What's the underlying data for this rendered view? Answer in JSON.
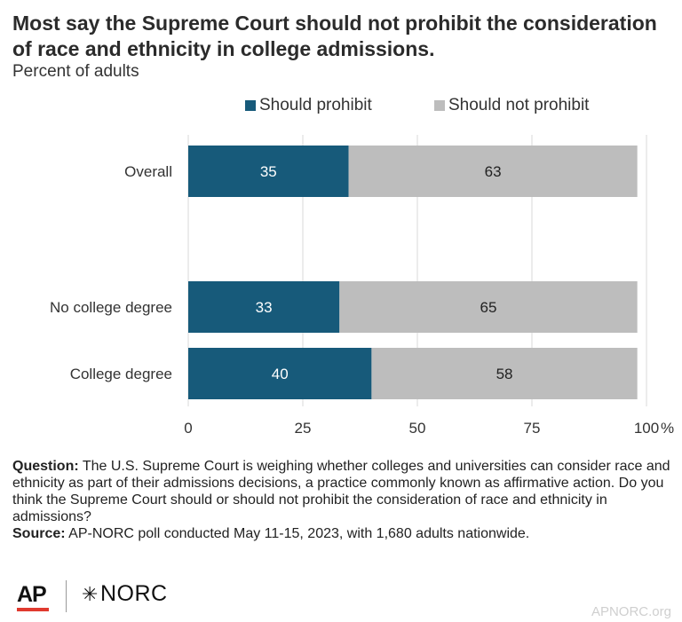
{
  "header": {
    "title": "Most say the Supreme Court should not prohibit the consideration of race and ethnicity in college admissions.",
    "subtitle": "Percent of adults"
  },
  "colors": {
    "should_prohibit": "#175a7a",
    "should_not_prohibit": "#bdbdbd",
    "grid": "#d9d9d9"
  },
  "chart_data": {
    "type": "bar",
    "orientation": "horizontal",
    "stacked": true,
    "title": "Most say the Supreme Court should not prohibit the consideration of race and ethnicity in college admissions.",
    "ylabel": "",
    "xlabel": "Percent of adults",
    "categories": [
      "Overall",
      "No college degree",
      "College degree"
    ],
    "series": [
      {
        "name": "Should prohibit",
        "values": [
          35,
          33,
          40
        ]
      },
      {
        "name": "Should not prohibit",
        "values": [
          63,
          65,
          58
        ]
      }
    ],
    "xlim": [
      0,
      100
    ],
    "ticks": [
      "0",
      "25",
      "50",
      "75",
      "100"
    ],
    "unit": "%",
    "grid": true,
    "legend": "top-center"
  },
  "notes": {
    "question_label": "Question:",
    "question_text": "The U.S. Supreme Court is weighing whether colleges and universities can consider race and ethnicity as part of their admissions decisions, a practice commonly known as affirmative action. Do you think the Supreme Court should or should not prohibit the consideration of race and ethnicity in admissions?",
    "source_label": "Source:",
    "source_text": "AP-NORC poll conducted May 11-15, 2023, with 1,680 adults nationwide."
  },
  "footer": {
    "ap_logo": "AP",
    "norc_star": "✳",
    "norc_logo": "NORC",
    "site": "APNORC.org"
  }
}
